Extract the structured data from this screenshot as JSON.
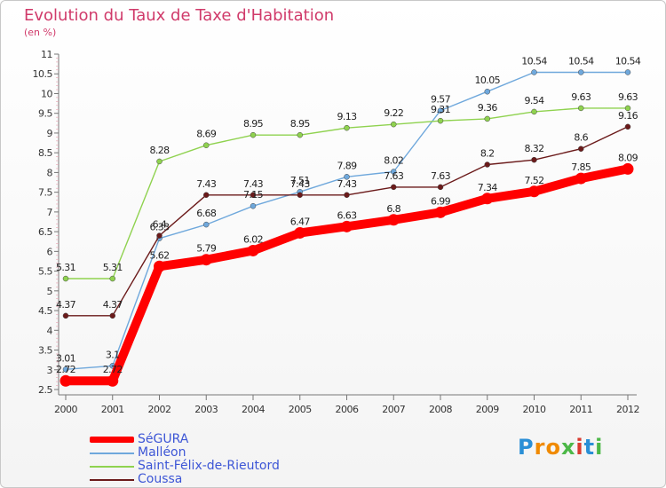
{
  "chart_title": "Evolution du Taux de Taxe d'Habitation",
  "chart_unit": "(en %)",
  "brand": "Proxiti",
  "colors": {
    "segura": "#ff0000",
    "malleon": "#6fa8dc",
    "saint_felix": "#8fd24f",
    "coussa": "#6b1a1a",
    "title": "#d03a6a",
    "legend_text": "#3d56d6"
  },
  "chart_data": {
    "type": "line",
    "title": "Evolution du Taux de Taxe d'Habitation",
    "subtitle": "(en %)",
    "xlabel": "",
    "ylabel": "",
    "x": [
      "2000",
      "2001",
      "2002",
      "2003",
      "2004",
      "2005",
      "2006",
      "2007",
      "2008",
      "2009",
      "2010",
      "2011",
      "2012"
    ],
    "ylim": [
      2.5,
      11
    ],
    "yticks": [
      "2.5",
      "3",
      "3.5",
      "4",
      "4.5",
      "5",
      "5.5",
      "6",
      "6.5",
      "7",
      "7.5",
      "8",
      "8.5",
      "9",
      "9.5",
      "10",
      "10.5",
      "11"
    ],
    "grid": false,
    "legend_position": "bottom-left",
    "series": [
      {
        "name": "SéGURA",
        "color": "#ff0000",
        "values": [
          2.72,
          2.72,
          5.62,
          5.79,
          6.02,
          6.47,
          6.63,
          6.8,
          6.99,
          7.34,
          7.52,
          7.85,
          8.09
        ],
        "labels": [
          "2.72",
          "2.72",
          "5.62",
          "5.79",
          "6.02",
          "6.47",
          "6.63",
          "6.8",
          "6.99",
          "7.34",
          "7.52",
          "7.85",
          "8.09"
        ]
      },
      {
        "name": "Malléon",
        "color": "#6fa8dc",
        "values": [
          3.01,
          3.1,
          6.33,
          6.68,
          7.15,
          7.51,
          7.89,
          8.02,
          9.57,
          10.05,
          10.54,
          10.54,
          10.54
        ],
        "labels": [
          "3.01",
          "3.1",
          "6.33",
          "6.68",
          "7.15",
          "7.51",
          "7.89",
          "8.02",
          "9.57",
          "10.05",
          "10.54",
          "10.54",
          "10.54"
        ]
      },
      {
        "name": "Saint-Félix-de-Rieutord",
        "color": "#8fd24f",
        "values": [
          5.31,
          5.31,
          8.28,
          8.69,
          8.95,
          8.95,
          9.13,
          9.22,
          9.31,
          9.36,
          9.54,
          9.63,
          9.63
        ],
        "labels": [
          "5.31",
          "5.31",
          "8.28",
          "8.69",
          "8.95",
          "8.95",
          "9.13",
          "9.22",
          "9.31",
          "9.36",
          "9.54",
          "9.63",
          "9.63"
        ]
      },
      {
        "name": "Coussa",
        "color": "#6b1a1a",
        "values": [
          4.37,
          4.37,
          6.4,
          7.43,
          7.43,
          7.43,
          7.43,
          7.63,
          7.63,
          8.2,
          8.32,
          8.6,
          9.16
        ],
        "labels": [
          "4.37",
          "4.37",
          "6.4",
          "7.43",
          "7.43",
          "7.43",
          "7.43",
          "7.63",
          "7.63",
          "8.2",
          "8.32",
          "8.6",
          "9.16"
        ]
      }
    ]
  }
}
